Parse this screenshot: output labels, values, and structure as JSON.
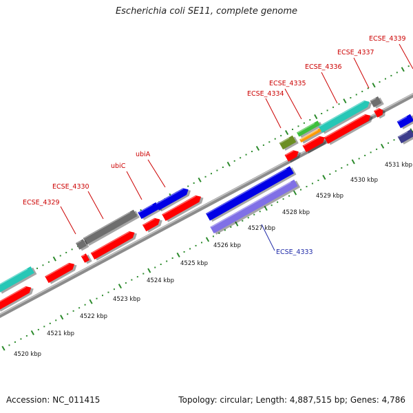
{
  "title": "Escherichia coli SE11, complete genome",
  "footer": {
    "accession": "Accession: NC_011415",
    "summary": "Topology: circular; Length: 4,887,515 bp; Genes: 4,786"
  },
  "colors": {
    "backbone": "#8c8c8c",
    "tick": "#2b8a2b",
    "label_red": "#cc0000",
    "label_blue": "#1f2aa8",
    "gene_red": "#ff0000",
    "gene_blue": "#0000e6",
    "gene_gray": "#6e6e6e",
    "gene_teal": "#27c7b6",
    "gene_cyan": "#00d6d6",
    "gene_olive": "#6b8e23",
    "gene_green": "#3cbf3c",
    "gene_orange": "#ff9900",
    "gene_lavender": "#8070e6",
    "gene_navy": "#3c3c8c"
  },
  "kbp_labels": [
    "4520 kbp",
    "4521 kbp",
    "4522 kbp",
    "4523 kbp",
    "4524 kbp",
    "4525 kbp",
    "4526 kbp",
    "4527 kbp",
    "4528 kbp",
    "4529 kbp",
    "4530 kbp",
    "4531 kbp"
  ],
  "gene_labels": [
    {
      "text": "ECSE_4329",
      "color": "red"
    },
    {
      "text": "ECSE_4330",
      "color": "red"
    },
    {
      "text": "ubiC",
      "color": "red"
    },
    {
      "text": "ubiA",
      "color": "red"
    },
    {
      "text": "ECSE_4334",
      "color": "red"
    },
    {
      "text": "ECSE_4335",
      "color": "red"
    },
    {
      "text": "ECSE_4336",
      "color": "red"
    },
    {
      "text": "ECSE_4337",
      "color": "red"
    },
    {
      "text": "ECSE_4339",
      "color": "red"
    },
    {
      "text": "ECSE_4333",
      "color": "blue"
    }
  ]
}
